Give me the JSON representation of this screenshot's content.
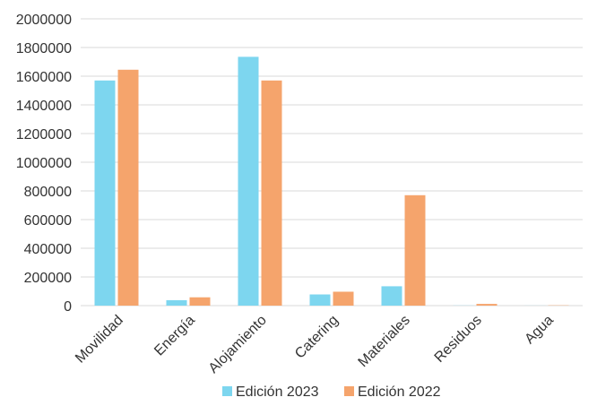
{
  "chart_data": {
    "type": "bar",
    "categories": [
      "Movilidad",
      "Energía",
      "Alojamiento",
      "Catering",
      "Materiales",
      "Residuos",
      "Agua"
    ],
    "series": [
      {
        "name": "Edición 2023",
        "values": [
          1570000,
          38000,
          1735000,
          78000,
          135000,
          1000,
          500
        ]
      },
      {
        "name": "Edición 2022",
        "values": [
          1645000,
          58000,
          1570000,
          97000,
          770000,
          12000,
          2000
        ]
      }
    ],
    "colors": [
      "#7dd6ef",
      "#f5a46c"
    ],
    "ylim": [
      0,
      2000000
    ],
    "yticks": [
      0,
      200000,
      400000,
      600000,
      800000,
      1000000,
      1200000,
      1400000,
      1600000,
      1800000,
      2000000
    ],
    "grid": true,
    "legend": "bottom-center",
    "title": "",
    "xlabel": "",
    "ylabel": ""
  }
}
